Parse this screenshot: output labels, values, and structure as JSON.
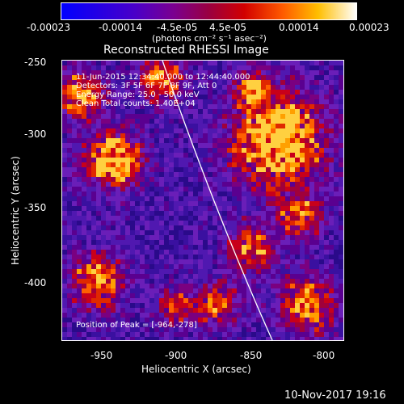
{
  "colorbar": {
    "ticks": [
      "-0.00023",
      "-0.00014",
      "-4.5e-05",
      "4.5e-05",
      "0.00014",
      "0.00023"
    ],
    "unit_label": "(photons cm⁻² s⁻¹ asec⁻²)",
    "palette": [
      "#0000ff",
      "#4a00c8",
      "#7a0090",
      "#9a0040",
      "#d20000",
      "#ff5a00",
      "#ffbe00",
      "#ffffff"
    ]
  },
  "plot": {
    "title": "Reconstructed RHESSI Image",
    "xlabel": "Heliocentric X (arcsec)",
    "ylabel": "Heliocentric Y (arcsec)",
    "x_ticks": [
      "-950",
      "-900",
      "-850",
      "-800"
    ],
    "y_ticks": [
      "-250",
      "-300",
      "-350",
      "-400"
    ],
    "x_range": [
      -975,
      -790
    ],
    "y_range": [
      -440,
      -250
    ],
    "annotations": [
      "11-Jun-2015 12:34:40.000 to 12:44:40.000",
      "Detectors: 3F 5F 6F 7F 8F 9F, Att 0",
      "Energy Range: 25.0 - 50.0 keV",
      "Clean     Total counts: 1.40E+04"
    ],
    "peak_label": "Position of Peak = [-964,-278]"
  },
  "footer": {
    "timestamp": "10-Nov-2017 19:16"
  }
}
